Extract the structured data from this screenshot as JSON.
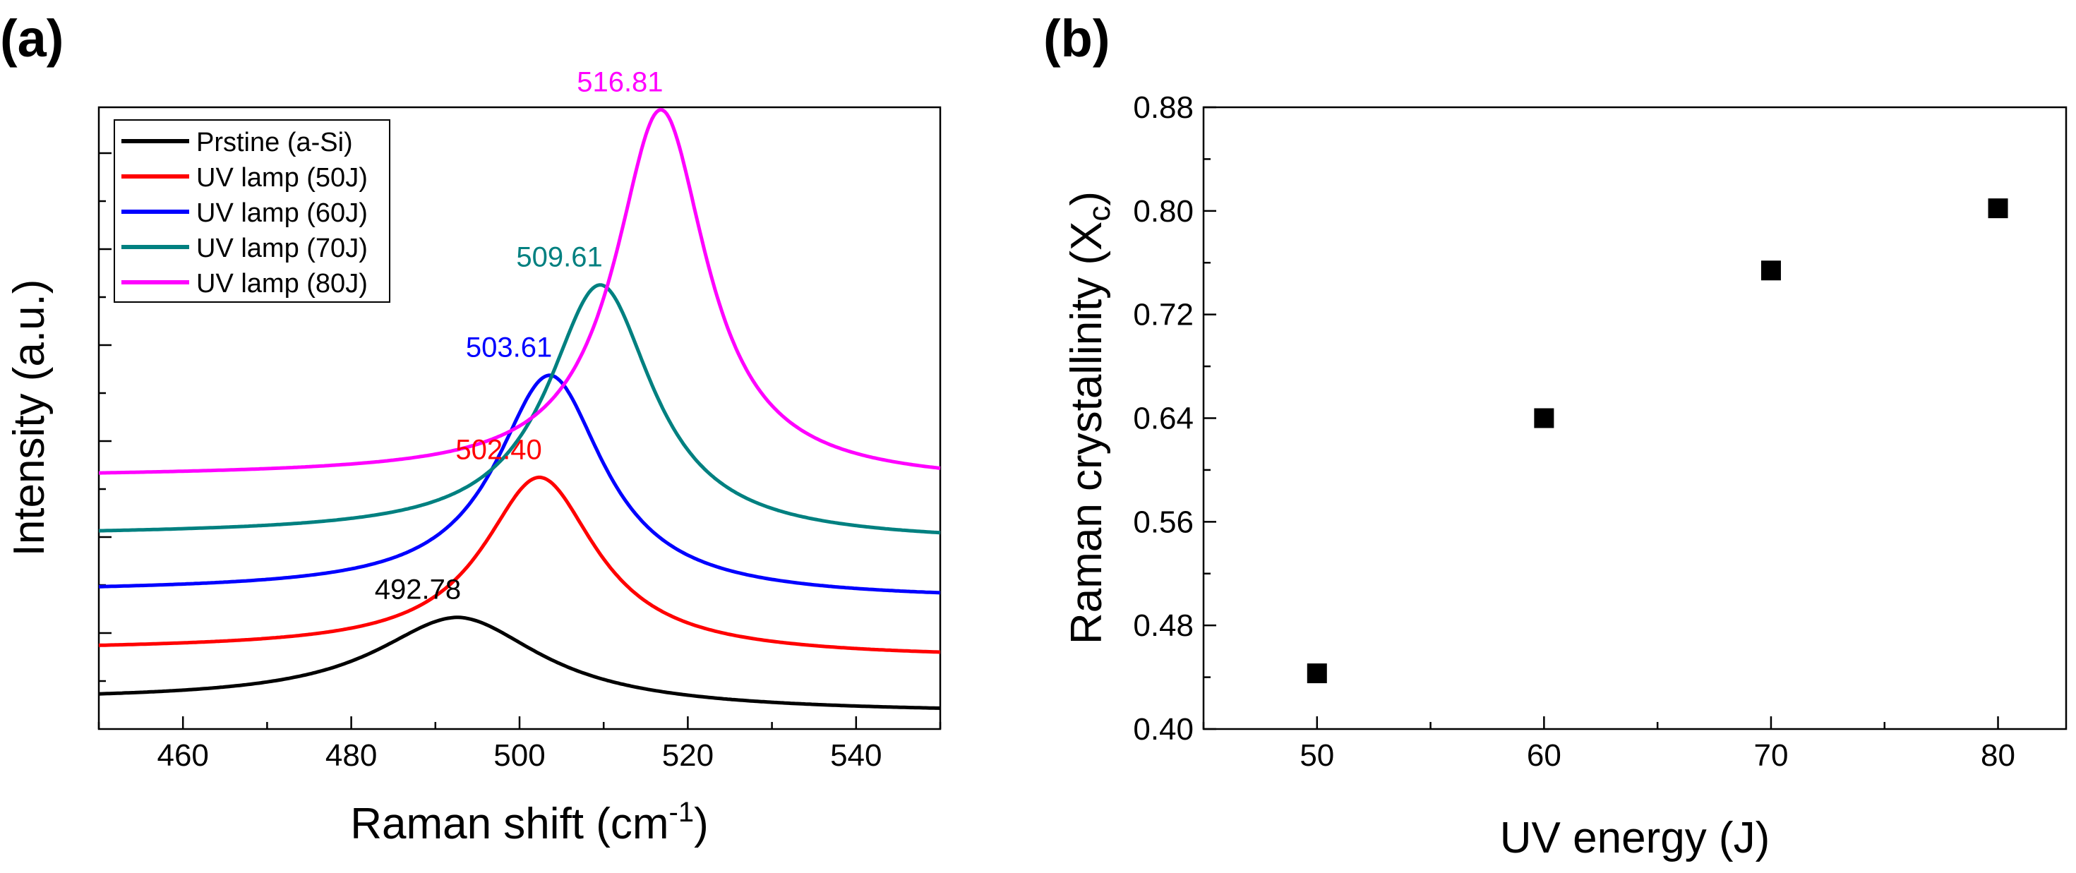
{
  "panel_labels": {
    "a": "(a)",
    "b": "(b)"
  },
  "chart_data": [
    {
      "type": "line",
      "title": "",
      "xlabel": "Raman shift (cm",
      "xlabel_sup": "-1",
      "xlabel_tail": ")",
      "ylabel": "Intensity (a.u.)",
      "xlim": [
        450,
        550
      ],
      "ylim": [
        0,
        6.4
      ],
      "xticks": [
        "460",
        "480",
        "500",
        "520",
        "540"
      ],
      "xtick_values": [
        460,
        480,
        500,
        520,
        540
      ],
      "ytick_labels": "none",
      "legend_position": "top-left",
      "series": [
        {
          "name": "Prstine (a-Si)",
          "color": "#000000",
          "baseline": 0,
          "amp": 0.85,
          "gamma": 12.0,
          "peak_x": 492.78,
          "tail": 0.3,
          "slope": 0.0,
          "peak_label": "492.78",
          "label_color": "#000000"
        },
        {
          "name": "UV lamp (50J)",
          "color": "#ff0000",
          "baseline": 0.55,
          "amp": 1.75,
          "gamma": 8.2,
          "peak_x": 502.4,
          "tail": 0.27,
          "slope": 0.0015,
          "peak_label": "502.40",
          "label_color": "#ff0000"
        },
        {
          "name": "UV lamp (60J)",
          "color": "#0000ff",
          "baseline": 1.15,
          "amp": 2.2,
          "gamma": 7.8,
          "peak_x": 503.61,
          "tail": 0.27,
          "slope": 0.0015,
          "peak_label": "503.61",
          "label_color": "#0000ff"
        },
        {
          "name": "UV lamp (70J)",
          "color": "#008080",
          "baseline": 1.75,
          "amp": 2.55,
          "gamma": 7.6,
          "peak_x": 509.61,
          "tail": 0.25,
          "slope": 0.0015,
          "peak_label": "509.61",
          "label_color": "#008080"
        },
        {
          "name": "UV lamp (80J)",
          "color": "#ff00ff",
          "baseline": 2.35,
          "amp": 3.75,
          "gamma": 6.6,
          "peak_x": 516.81,
          "tail": 0.25,
          "slope": 0.0015,
          "peak_label": "516.81",
          "label_color": "#ff00ff"
        }
      ]
    },
    {
      "type": "scatter",
      "title": "",
      "xlabel": "UV energy (J)",
      "ylabel": "Raman crystallinity (X",
      "ylabel_sub": "c",
      "ylabel_tail": ")",
      "xlim": [
        45,
        83
      ],
      "ylim": [
        0.4,
        0.88
      ],
      "xticks": [
        "50",
        "60",
        "70",
        "80"
      ],
      "xtick_values": [
        50,
        60,
        70,
        80
      ],
      "yticks": [
        "0.40",
        "0.48",
        "0.56",
        "0.64",
        "0.72",
        "0.80",
        "0.88"
      ],
      "ytick_values": [
        0.4,
        0.48,
        0.56,
        0.64,
        0.72,
        0.8,
        0.88
      ],
      "marker": "square",
      "marker_color": "#000000",
      "x": [
        50,
        60,
        70,
        80
      ],
      "y": [
        0.443,
        0.64,
        0.754,
        0.802
      ]
    }
  ]
}
